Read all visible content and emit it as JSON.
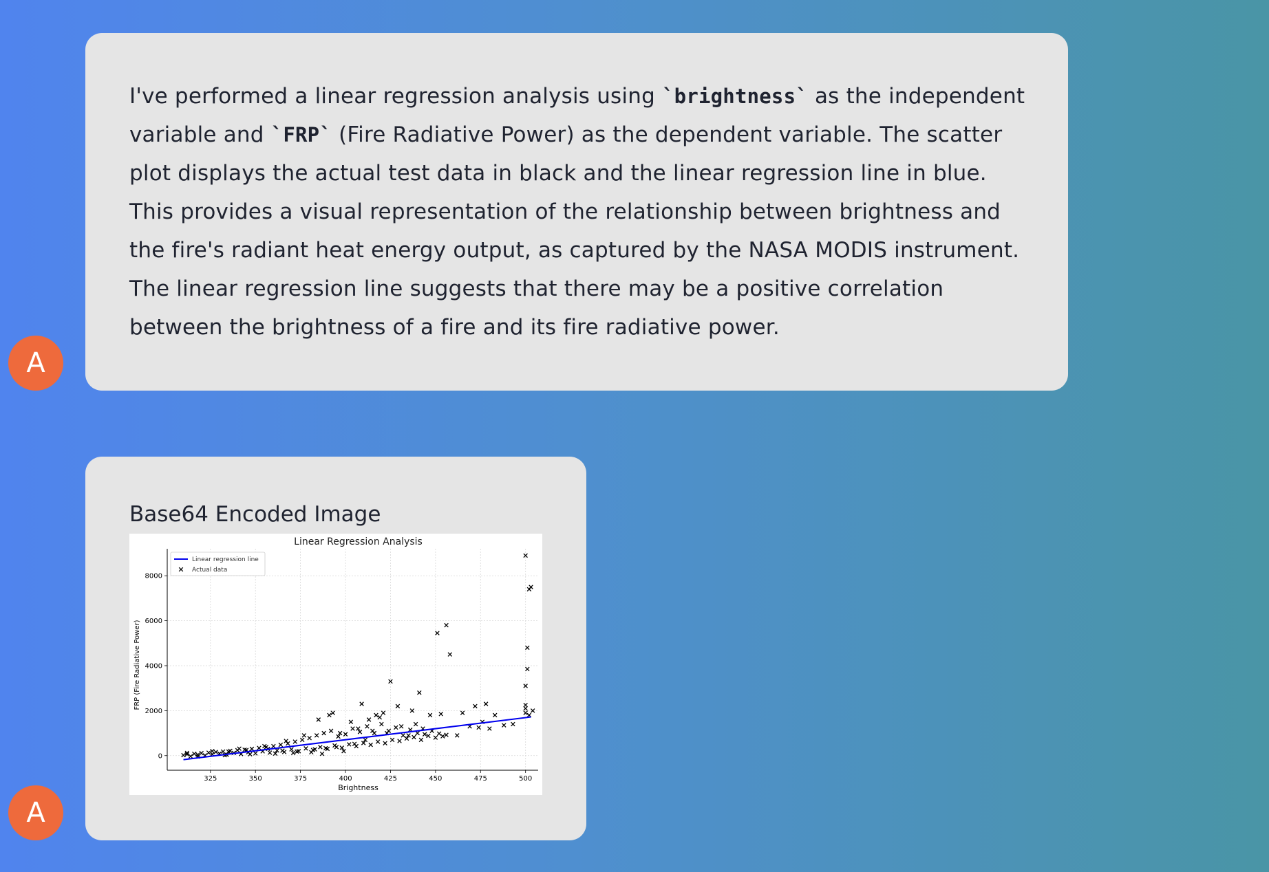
{
  "messages": [
    {
      "avatar": "A",
      "text_parts": [
        "I've performed a linear regression analysis using ",
        "`brightness`",
        " as the independent variable and ",
        "`FRP`",
        " (Fire Radiative Power) as the dependent variable. The scatter plot displays the actual test data in black and the linear regression line in blue. This provides a visual representation of the relationship between brightness and the fire's radiant heat energy output, as captured by the NASA MODIS instrument. The linear regression line suggests that there may be a positive correlation between the brightness of a fire and its fire radiative power."
      ]
    },
    {
      "avatar": "A",
      "caption": "Base64 Encoded Image"
    }
  ],
  "colors": {
    "avatar": "#ee6a3c",
    "bubble": "#e5e5e5",
    "regression_line": "#0000ee",
    "points": "#000000"
  },
  "chart_data": {
    "type": "scatter",
    "title": "Linear Regression Analysis",
    "xlabel": "Brightness",
    "ylabel": "FRP (Fire Radiative Power)",
    "xlim": [
      301,
      507
    ],
    "ylim": [
      -650,
      9200
    ],
    "xticks": [
      325,
      350,
      375,
      400,
      425,
      450,
      475,
      500
    ],
    "yticks": [
      0,
      2000,
      4000,
      6000,
      8000
    ],
    "grid": true,
    "legend_position": "top-left",
    "series": [
      {
        "name": "Linear regression line",
        "type": "line",
        "color": "#0000ee",
        "points": [
          [
            310,
            -180
          ],
          [
            503,
            1720
          ]
        ]
      },
      {
        "name": "Actual data",
        "type": "scatter",
        "marker": "x",
        "color": "#000000",
        "points": [
          [
            310,
            20
          ],
          [
            312,
            60
          ],
          [
            314,
            -30
          ],
          [
            316,
            80
          ],
          [
            318,
            40
          ],
          [
            320,
            110
          ],
          [
            322,
            10
          ],
          [
            324,
            130
          ],
          [
            326,
            60
          ],
          [
            328,
            160
          ],
          [
            330,
            90
          ],
          [
            332,
            180
          ],
          [
            334,
            40
          ],
          [
            336,
            210
          ],
          [
            338,
            120
          ],
          [
            340,
            240
          ],
          [
            342,
            70
          ],
          [
            344,
            260
          ],
          [
            346,
            150
          ],
          [
            348,
            300
          ],
          [
            350,
            100
          ],
          [
            352,
            340
          ],
          [
            354,
            190
          ],
          [
            356,
            380
          ],
          [
            358,
            130
          ],
          [
            360,
            420
          ],
          [
            362,
            230
          ],
          [
            364,
            480
          ],
          [
            366,
            160
          ],
          [
            368,
            540
          ],
          [
            370,
            280
          ],
          [
            372,
            620
          ],
          [
            374,
            200
          ],
          [
            376,
            700
          ],
          [
            378,
            320
          ],
          [
            380,
            780
          ],
          [
            382,
            250
          ],
          [
            384,
            900
          ],
          [
            386,
            380
          ],
          [
            388,
            1000
          ],
          [
            390,
            300
          ],
          [
            392,
            1100
          ],
          [
            394,
            450
          ],
          [
            396,
            850
          ],
          [
            398,
            350
          ],
          [
            400,
            950
          ],
          [
            402,
            500
          ],
          [
            404,
            1200
          ],
          [
            406,
            420
          ],
          [
            408,
            1050
          ],
          [
            410,
            560
          ],
          [
            412,
            1300
          ],
          [
            414,
            480
          ],
          [
            416,
            1000
          ],
          [
            418,
            620
          ],
          [
            420,
            1400
          ],
          [
            422,
            550
          ],
          [
            424,
            1100
          ],
          [
            426,
            700
          ],
          [
            428,
            1250
          ],
          [
            430,
            650
          ],
          [
            432,
            900
          ],
          [
            434,
            760
          ],
          [
            436,
            1150
          ],
          [
            438,
            820
          ],
          [
            440,
            1000
          ],
          [
            442,
            700
          ],
          [
            444,
            950
          ],
          [
            446,
            880
          ],
          [
            448,
            1100
          ],
          [
            450,
            800
          ],
          [
            452,
            980
          ],
          [
            454,
            860
          ],
          [
            456,
            920
          ],
          [
            312,
            120
          ],
          [
            318,
            -40
          ],
          [
            326,
            200
          ],
          [
            333,
            20
          ],
          [
            341,
            310
          ],
          [
            347,
            60
          ],
          [
            355,
            420
          ],
          [
            361,
            90
          ],
          [
            367,
            650
          ],
          [
            371,
            120
          ],
          [
            377,
            900
          ],
          [
            381,
            150
          ],
          [
            385,
            1600
          ],
          [
            387,
            80
          ],
          [
            391,
            1800
          ],
          [
            393,
            1900
          ],
          [
            397,
            1000
          ],
          [
            399,
            200
          ],
          [
            403,
            1500
          ],
          [
            407,
            1200
          ],
          [
            409,
            2300
          ],
          [
            413,
            1600
          ],
          [
            415,
            1100
          ],
          [
            417,
            1800
          ],
          [
            419,
            1700
          ],
          [
            421,
            1900
          ],
          [
            423,
            1000
          ],
          [
            425,
            3300
          ],
          [
            429,
            2200
          ],
          [
            431,
            1300
          ],
          [
            435,
            900
          ],
          [
            437,
            2000
          ],
          [
            439,
            1400
          ],
          [
            441,
            2800
          ],
          [
            443,
            1200
          ],
          [
            447,
            1800
          ],
          [
            451,
            5450
          ],
          [
            453,
            1850
          ],
          [
            456,
            5800
          ],
          [
            458,
            4500
          ],
          [
            462,
            900
          ],
          [
            465,
            1900
          ],
          [
            469,
            1300
          ],
          [
            472,
            2200
          ],
          [
            474,
            1250
          ],
          [
            476,
            1500
          ],
          [
            478,
            2300
          ],
          [
            480,
            1200
          ],
          [
            483,
            1800
          ],
          [
            488,
            1350
          ],
          [
            493,
            1400
          ],
          [
            500,
            8900
          ],
          [
            500,
            2100
          ],
          [
            500,
            1900
          ],
          [
            501,
            4800
          ],
          [
            501,
            3850
          ],
          [
            500,
            3100
          ],
          [
            500,
            2250
          ],
          [
            502,
            1800
          ],
          [
            502,
            7400
          ],
          [
            503,
            7500
          ],
          [
            504,
            2000
          ],
          [
            335,
            180
          ],
          [
            345,
            250
          ],
          [
            357,
            300
          ],
          [
            365,
            220
          ],
          [
            373,
            180
          ],
          [
            383,
            280
          ],
          [
            389,
            330
          ],
          [
            395,
            380
          ],
          [
            405,
            520
          ],
          [
            411,
            700
          ]
        ]
      }
    ]
  }
}
